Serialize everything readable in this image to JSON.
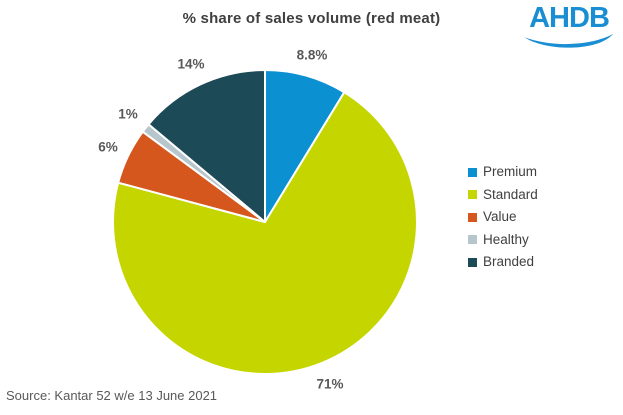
{
  "header": {
    "logo_text": "AHDB",
    "logo_color": "#1a8ed3"
  },
  "chart_data": {
    "type": "pie",
    "title": "% share of sales volume (red meat)",
    "categories": [
      "Premium",
      "Standard",
      "Value",
      "Healthy",
      "Branded"
    ],
    "values": [
      8.8,
      71,
      6,
      1,
      14
    ],
    "data_labels": [
      "8.8%",
      "71%",
      "6%",
      "1%",
      "14%"
    ],
    "colors": [
      "#0b90d1",
      "#c4d500",
      "#d5571d",
      "#b7c6cc",
      "#1d4a57"
    ],
    "start_angle_deg": 0,
    "direction": "clockwise",
    "legend_position": "right",
    "slice_border_color": "#ffffff",
    "label_color": "#595959"
  },
  "footer": {
    "source": "Source: Kantar 52 w/e 13 June 2021"
  }
}
